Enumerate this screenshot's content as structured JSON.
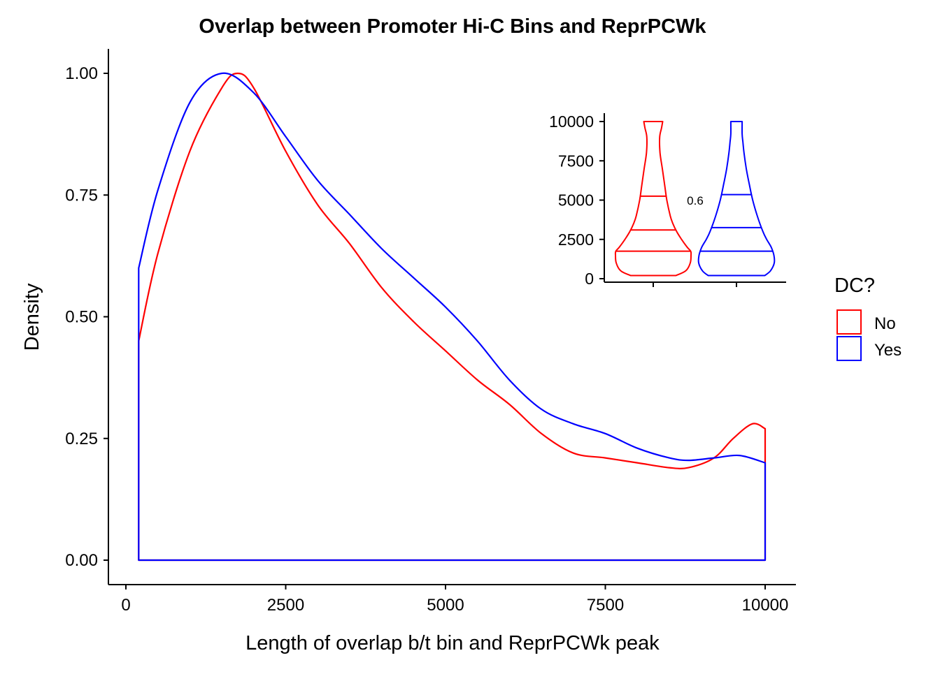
{
  "chart_data": [
    {
      "type": "line",
      "subtype": "density",
      "title": "Overlap between Promoter Hi-C Bins and ReprPCWk",
      "xlabel": "Length of overlap b/t bin and ReprPCWk peak",
      "ylabel": "Density",
      "xlim": [
        0,
        10000
      ],
      "ylim": [
        0,
        1
      ],
      "x_ticks": [
        0,
        2500,
        5000,
        7500,
        10000
      ],
      "x_tick_labels": [
        "0",
        "2500",
        "5000",
        "7500",
        "10000"
      ],
      "y_ticks": [
        0,
        0.25,
        0.5,
        0.75,
        1
      ],
      "y_tick_labels": [
        "0.00",
        "0.25",
        "0.50",
        "0.75",
        "1.00"
      ],
      "grid": false,
      "legend": {
        "title": "DC?",
        "placement": "right",
        "entries": [
          "No",
          "Yes"
        ]
      },
      "series": [
        {
          "name": "No",
          "color": "#ff0000",
          "x": [
            200,
            500,
            1000,
            1500,
            1750,
            2000,
            2500,
            3000,
            3500,
            4000,
            4500,
            5000,
            5500,
            6000,
            6500,
            7000,
            7500,
            8000,
            8500,
            8800,
            9200,
            9500,
            9800,
            10000
          ],
          "y": [
            0.45,
            0.63,
            0.84,
            0.97,
            1.0,
            0.97,
            0.84,
            0.73,
            0.65,
            0.56,
            0.49,
            0.43,
            0.37,
            0.32,
            0.26,
            0.22,
            0.21,
            0.2,
            0.19,
            0.19,
            0.21,
            0.25,
            0.28,
            0.27
          ]
        },
        {
          "name": "Yes",
          "color": "#0000ff",
          "x": [
            200,
            500,
            1000,
            1500,
            2000,
            2500,
            3000,
            3500,
            4000,
            4500,
            5000,
            5500,
            6000,
            6500,
            7000,
            7500,
            8000,
            8500,
            8800,
            9200,
            9600,
            10000
          ],
          "y": [
            0.6,
            0.76,
            0.94,
            1.0,
            0.96,
            0.87,
            0.78,
            0.71,
            0.64,
            0.58,
            0.52,
            0.45,
            0.37,
            0.31,
            0.28,
            0.26,
            0.23,
            0.21,
            0.205,
            0.21,
            0.215,
            0.2
          ]
        }
      ]
    },
    {
      "type": "violin",
      "placement": "inset top-right",
      "ylim": [
        0,
        10000
      ],
      "y_ticks": [
        0,
        2500,
        5000,
        7500,
        10000
      ],
      "y_tick_labels": [
        "0",
        "2500",
        "5000",
        "7500",
        "10000"
      ],
      "annotation": "0.6",
      "groups": [
        {
          "name": "No",
          "color": "#ff0000",
          "range": [
            200,
            10000
          ],
          "quantiles": [
            1750,
            3100,
            5250
          ],
          "profile_y": [
            200,
            500,
            1000,
            1500,
            1750,
            2000,
            2500,
            3000,
            3500,
            4000,
            5000,
            6000,
            7000,
            8000,
            9000,
            9600,
            10000
          ],
          "profile_w": [
            0.6,
            0.86,
            0.98,
            1.0,
            0.99,
            0.9,
            0.75,
            0.62,
            0.52,
            0.45,
            0.36,
            0.3,
            0.24,
            0.18,
            0.17,
            0.22,
            0.25
          ]
        },
        {
          "name": "Yes",
          "color": "#0000ff",
          "range": [
            200,
            10000
          ],
          "quantiles": [
            1750,
            3250,
            5350
          ],
          "profile_y": [
            200,
            500,
            1000,
            1500,
            2000,
            2500,
            3000,
            4000,
            5000,
            6000,
            7000,
            8000,
            8700,
            9200,
            10000
          ],
          "profile_w": [
            0.75,
            0.9,
            1.0,
            0.99,
            0.92,
            0.8,
            0.7,
            0.55,
            0.43,
            0.34,
            0.26,
            0.2,
            0.17,
            0.15,
            0.15
          ]
        }
      ]
    }
  ]
}
